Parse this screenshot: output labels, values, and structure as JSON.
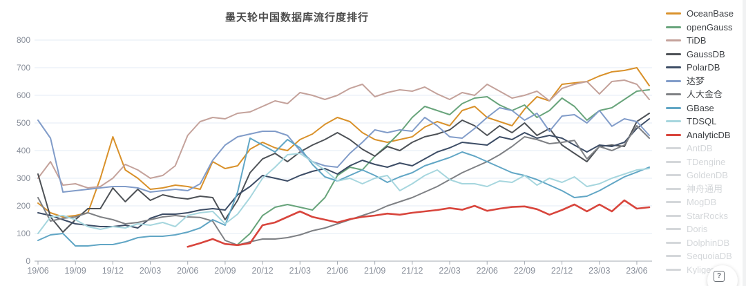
{
  "title": "墨天轮中国数据库流行度排行",
  "help_button": {
    "icon": "?"
  },
  "colors": {
    "background": "#ffffff",
    "grid": "#e3ebf4",
    "axis": "#a3a9b2",
    "axis_label": "#8a909b",
    "title_text": "#4a4a4a",
    "legend_text": "#3f4246",
    "legend_inactive": "#d4d7da"
  },
  "legend": {
    "position": "right",
    "items": [
      {
        "key": "oceanbase",
        "label": "OceanBase",
        "color": "#d9912a",
        "active": true
      },
      {
        "key": "opengauss",
        "label": "openGauss",
        "color": "#68a47b",
        "active": true
      },
      {
        "key": "tidb",
        "label": "TiDB",
        "color": "#c4a29b",
        "active": true
      },
      {
        "key": "gaussdb",
        "label": "GaussDB",
        "color": "#4d5156",
        "active": true
      },
      {
        "key": "polardb",
        "label": "PolarDB",
        "color": "#3d4d66",
        "active": true
      },
      {
        "key": "dameng",
        "label": "达梦",
        "color": "#819cc9",
        "active": true
      },
      {
        "key": "kingbase",
        "label": "人大金仓",
        "color": "#7e8084",
        "active": true
      },
      {
        "key": "gbase",
        "label": "GBase",
        "color": "#61a6c5",
        "active": true
      },
      {
        "key": "tdsql",
        "label": "TDSQL",
        "color": "#a6d6de",
        "active": true
      },
      {
        "key": "analyticdb",
        "label": "AnalyticDB",
        "color": "#d8453c",
        "active": true
      },
      {
        "key": "antdb",
        "label": "AntDB",
        "color": "#d4d7da",
        "active": false
      },
      {
        "key": "tdengine",
        "label": "TDengine",
        "color": "#d4d7da",
        "active": false
      },
      {
        "key": "goldendb",
        "label": "GoldenDB",
        "color": "#d4d7da",
        "active": false
      },
      {
        "key": "shenzhou-tongyong",
        "label": "神舟通用",
        "color": "#d4d7da",
        "active": false
      },
      {
        "key": "mogdb",
        "label": "MogDB",
        "color": "#d4d7da",
        "active": false
      },
      {
        "key": "starrocks",
        "label": "StarRocks",
        "color": "#d4d7da",
        "active": false
      },
      {
        "key": "doris",
        "label": "Doris",
        "color": "#d4d7da",
        "active": false
      },
      {
        "key": "dolphindb",
        "label": "DolphinDB",
        "color": "#d4d7da",
        "active": false
      },
      {
        "key": "sequoiadb",
        "label": "SequoiaDB",
        "color": "#d4d7da",
        "active": false
      },
      {
        "key": "kyligence",
        "label": "Kyligence",
        "color": "#d4d7da",
        "active": false
      }
    ]
  },
  "chart_data": {
    "type": "line",
    "title": "墨天轮中国数据库流行度排行",
    "xlabel": "",
    "ylabel": "",
    "ylim": [
      0,
      800
    ],
    "y_ticks": [
      0,
      100,
      200,
      300,
      400,
      500,
      600,
      700,
      800
    ],
    "grid": "horizontal",
    "legend_position": "right",
    "x": [
      "19/06",
      "19/07",
      "19/08",
      "19/09",
      "19/10",
      "19/11",
      "19/12",
      "20/01",
      "20/02",
      "20/03",
      "20/04",
      "20/05",
      "20/06",
      "20/07",
      "20/08",
      "20/09",
      "20/10",
      "20/11",
      "20/12",
      "21/01",
      "21/02",
      "21/03",
      "21/04",
      "21/05",
      "21/06",
      "21/07",
      "21/08",
      "21/09",
      "21/10",
      "21/11",
      "21/12",
      "22/01",
      "22/02",
      "22/03",
      "22/04",
      "22/05",
      "22/06",
      "22/07",
      "22/08",
      "22/09",
      "22/10",
      "22/11",
      "22/12",
      "23/01",
      "23/02",
      "23/03",
      "23/04",
      "23/05",
      "23/06",
      "23/07"
    ],
    "x_tick_every": 3,
    "series": [
      {
        "key": "oceanbase",
        "name": "OceanBase",
        "color": "#d9912a",
        "values": [
          210,
          175,
          160,
          165,
          175,
          300,
          450,
          330,
          300,
          260,
          265,
          275,
          270,
          260,
          360,
          335,
          345,
          405,
          430,
          410,
          400,
          440,
          460,
          495,
          520,
          505,
          465,
          440,
          430,
          440,
          450,
          485,
          505,
          490,
          545,
          560,
          520,
          505,
          490,
          550,
          595,
          580,
          640,
          645,
          650,
          670,
          685,
          690,
          700,
          635
        ]
      },
      {
        "key": "opengauss",
        "name": "openGauss",
        "color": "#68a47b",
        "values": [
          null,
          null,
          null,
          null,
          null,
          null,
          null,
          null,
          null,
          null,
          null,
          null,
          null,
          null,
          null,
          null,
          60,
          100,
          165,
          195,
          205,
          195,
          185,
          230,
          310,
          340,
          330,
          380,
          420,
          465,
          520,
          560,
          545,
          530,
          570,
          590,
          595,
          565,
          545,
          565,
          520,
          545,
          590,
          560,
          510,
          545,
          555,
          585,
          615,
          620
        ]
      },
      {
        "key": "tidb",
        "name": "TiDB",
        "color": "#c4a29b",
        "values": [
          300,
          360,
          275,
          280,
          265,
          270,
          300,
          350,
          330,
          300,
          310,
          345,
          455,
          505,
          520,
          515,
          535,
          540,
          560,
          580,
          570,
          610,
          600,
          585,
          600,
          625,
          640,
          595,
          610,
          620,
          615,
          630,
          605,
          585,
          610,
          600,
          640,
          615,
          590,
          600,
          615,
          580,
          625,
          640,
          650,
          605,
          650,
          655,
          640,
          585
        ]
      },
      {
        "key": "gaussdb",
        "name": "GaussDB",
        "color": "#4d5156",
        "values": [
          315,
          160,
          105,
          150,
          190,
          190,
          265,
          215,
          260,
          220,
          240,
          230,
          225,
          235,
          230,
          150,
          220,
          320,
          370,
          390,
          360,
          395,
          420,
          440,
          465,
          440,
          405,
          380,
          415,
          400,
          430,
          450,
          460,
          475,
          510,
          490,
          455,
          490,
          465,
          500,
          455,
          480,
          420,
          390,
          360,
          415,
          420,
          415,
          505,
          535
        ]
      },
      {
        "key": "polardb",
        "name": "PolarDB",
        "color": "#3d4d66",
        "values": [
          175,
          165,
          150,
          135,
          130,
          125,
          125,
          130,
          120,
          155,
          170,
          170,
          175,
          185,
          190,
          185,
          240,
          270,
          310,
          300,
          290,
          310,
          325,
          335,
          315,
          345,
          365,
          350,
          340,
          355,
          345,
          370,
          395,
          410,
          430,
          425,
          420,
          450,
          440,
          465,
          445,
          455,
          445,
          420,
          395,
          420,
          415,
          430,
          480,
          515
        ]
      },
      {
        "key": "dameng",
        "name": "达梦",
        "color": "#819cc9",
        "values": [
          510,
          445,
          250,
          255,
          260,
          265,
          270,
          270,
          265,
          250,
          255,
          260,
          255,
          280,
          365,
          420,
          450,
          460,
          470,
          470,
          455,
          400,
          360,
          345,
          340,
          390,
          430,
          475,
          465,
          475,
          470,
          520,
          490,
          450,
          445,
          480,
          520,
          555,
          545,
          510,
          535,
          470,
          525,
          530,
          500,
          545,
          488,
          515,
          505,
          455
        ]
      },
      {
        "key": "kingbase",
        "name": "人大金仓",
        "color": "#7e8084",
        "values": [
          230,
          145,
          155,
          160,
          175,
          160,
          150,
          135,
          140,
          150,
          160,
          165,
          160,
          158,
          145,
          75,
          58,
          70,
          80,
          80,
          85,
          95,
          110,
          120,
          135,
          150,
          165,
          180,
          200,
          215,
          230,
          250,
          270,
          295,
          320,
          340,
          360,
          385,
          415,
          450,
          440,
          425,
          430,
          437,
          370,
          415,
          400,
          420,
          490,
          445
        ]
      },
      {
        "key": "gbase",
        "name": "GBase",
        "color": "#61a6c5",
        "values": [
          75,
          95,
          100,
          55,
          55,
          60,
          60,
          70,
          85,
          90,
          90,
          95,
          105,
          120,
          150,
          130,
          250,
          445,
          420,
          395,
          440,
          410,
          350,
          305,
          290,
          310,
          330,
          310,
          285,
          305,
          320,
          345,
          360,
          375,
          395,
          380,
          360,
          340,
          320,
          310,
          295,
          275,
          255,
          230,
          235,
          255,
          280,
          305,
          322,
          340
        ]
      },
      {
        "key": "tdsql",
        "name": "TDSQL",
        "color": "#a6d6de",
        "values": [
          100,
          160,
          165,
          150,
          125,
          115,
          125,
          120,
          135,
          130,
          140,
          125,
          165,
          175,
          180,
          135,
          170,
          230,
          300,
          340,
          385,
          390,
          360,
          330,
          290,
          300,
          280,
          300,
          310,
          255,
          280,
          310,
          330,
          295,
          280,
          280,
          270,
          290,
          285,
          310,
          275,
          300,
          285,
          305,
          270,
          280,
          300,
          315,
          330,
          335
        ]
      },
      {
        "key": "analyticdb",
        "name": "AnalyticDB",
        "color": "#d8453c",
        "values": [
          null,
          null,
          null,
          null,
          null,
          null,
          null,
          null,
          null,
          null,
          null,
          null,
          52,
          65,
          80,
          62,
          58,
          65,
          130,
          140,
          160,
          180,
          160,
          150,
          140,
          152,
          160,
          165,
          172,
          168,
          175,
          180,
          185,
          192,
          186,
          200,
          182,
          190,
          196,
          198,
          188,
          168,
          185,
          205,
          180,
          205,
          180,
          220,
          190,
          195
        ]
      }
    ]
  }
}
